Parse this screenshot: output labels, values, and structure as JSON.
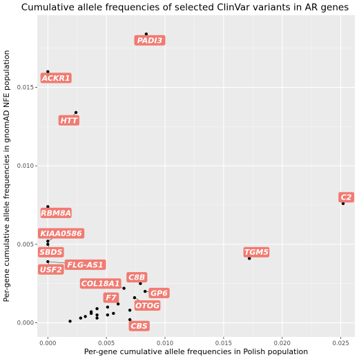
{
  "chart_data": {
    "type": "scatter",
    "title": "Cumulative allele frequencies of selected ClinVar variants in AR genes",
    "xlabel": "Per-gene cumulative allele frequencies in Polish population",
    "ylabel": "Per-gene cumulative allele frequencies in gnomAD NFE population",
    "xlim": [
      -0.0009,
      0.0262
    ],
    "ylim": [
      -0.0009,
      0.0196
    ],
    "xticks": [
      0.0,
      0.005,
      0.01,
      0.015,
      0.02,
      0.025
    ],
    "xtick_labels": [
      "0.000",
      "0.005",
      "0.010",
      "0.015",
      "0.020",
      "0.025"
    ],
    "yticks": [
      0.0,
      0.005,
      0.01,
      0.015
    ],
    "ytick_labels": [
      "0.000",
      "0.005",
      "0.010",
      "0.015"
    ],
    "grid": true,
    "background": "#ebebeb",
    "label_color": "#f07b72",
    "reference_line": {
      "slope": 1,
      "intercept": 0
    },
    "points": [
      {
        "x": 0.0084,
        "y": 0.0184
      },
      {
        "x": 0.0,
        "y": 0.016
      },
      {
        "x": 0.0024,
        "y": 0.0134
      },
      {
        "x": 0.0252,
        "y": 0.0076
      },
      {
        "x": 0.0,
        "y": 0.0074
      },
      {
        "x": 0.0,
        "y": 0.0052
      },
      {
        "x": 0.0,
        "y": 0.005
      },
      {
        "x": 0.0,
        "y": 0.0039
      },
      {
        "x": 0.0172,
        "y": 0.0041
      },
      {
        "x": 0.0079,
        "y": 0.0025
      },
      {
        "x": 0.0083,
        "y": 0.002
      },
      {
        "x": 0.0065,
        "y": 0.0022
      },
      {
        "x": 0.0074,
        "y": 0.0016
      },
      {
        "x": 0.006,
        "y": 0.0012
      },
      {
        "x": 0.007,
        "y": 0.0008
      },
      {
        "x": 0.007,
        "y": 0.0002
      },
      {
        "x": 0.0051,
        "y": 0.001
      },
      {
        "x": 0.0051,
        "y": 0.0005
      },
      {
        "x": 0.0056,
        "y": 0.0006
      },
      {
        "x": 0.0042,
        "y": 0.0009
      },
      {
        "x": 0.0042,
        "y": 0.0005
      },
      {
        "x": 0.0042,
        "y": 0.0003
      },
      {
        "x": 0.0037,
        "y": 0.0007
      },
      {
        "x": 0.0037,
        "y": 0.0006
      },
      {
        "x": 0.0032,
        "y": 0.0004
      },
      {
        "x": 0.0028,
        "y": 0.0003
      },
      {
        "x": 0.0019,
        "y": 0.0001
      }
    ],
    "labels": [
      {
        "text": "PADI3",
        "x": 0.0087,
        "y": 0.018,
        "px": 0.0084,
        "py": 0.0184
      },
      {
        "text": "ACKR1",
        "x": 0.0007,
        "y": 0.0156,
        "px": 0.0,
        "py": 0.016
      },
      {
        "text": "HTT",
        "x": 0.0018,
        "y": 0.0129,
        "px": 0.0024,
        "py": 0.0134
      },
      {
        "text": "C2",
        "x": 0.0256,
        "y": 0.008,
        "px": 0.0252,
        "py": 0.0076
      },
      {
        "text": "RBM8A",
        "x": 0.0007,
        "y": 0.007,
        "px": 0.0,
        "py": 0.0074
      },
      {
        "text": "KIAA0586",
        "x": 0.001,
        "y": 0.0057,
        "px": 0.0,
        "py": 0.0052
      },
      {
        "text": "SBDS",
        "x": 0.0001,
        "y": 0.0045,
        "px": 0.0,
        "py": 0.005
      },
      {
        "text": "USF2",
        "x": 0.0001,
        "y": 0.0034,
        "px": 0.0,
        "py": 0.0039
      },
      {
        "text": "FLG-AS1",
        "x": 0.0032,
        "y": 0.0037,
        "px": 0.0,
        "py": 0.0039
      },
      {
        "text": "TGM5",
        "x": 0.0178,
        "y": 0.0045,
        "px": 0.0172,
        "py": 0.0041
      },
      {
        "text": "C8B",
        "x": 0.0076,
        "y": 0.0029,
        "px": 0.0079,
        "py": 0.0025
      },
      {
        "text": "COL18A1",
        "x": 0.0045,
        "y": 0.0025,
        "px": 0.0065,
        "py": 0.0022
      },
      {
        "text": "GP6",
        "x": 0.0095,
        "y": 0.0019,
        "px": 0.0083,
        "py": 0.002
      },
      {
        "text": "F7",
        "x": 0.0054,
        "y": 0.0016,
        "px": 0.006,
        "py": 0.0012
      },
      {
        "text": "OTOG",
        "x": 0.0085,
        "y": 0.0011,
        "px": 0.0074,
        "py": 0.0016
      },
      {
        "text": "CBS",
        "x": 0.0078,
        "y": -0.0002,
        "px": 0.007,
        "py": 0.0002
      }
    ]
  }
}
